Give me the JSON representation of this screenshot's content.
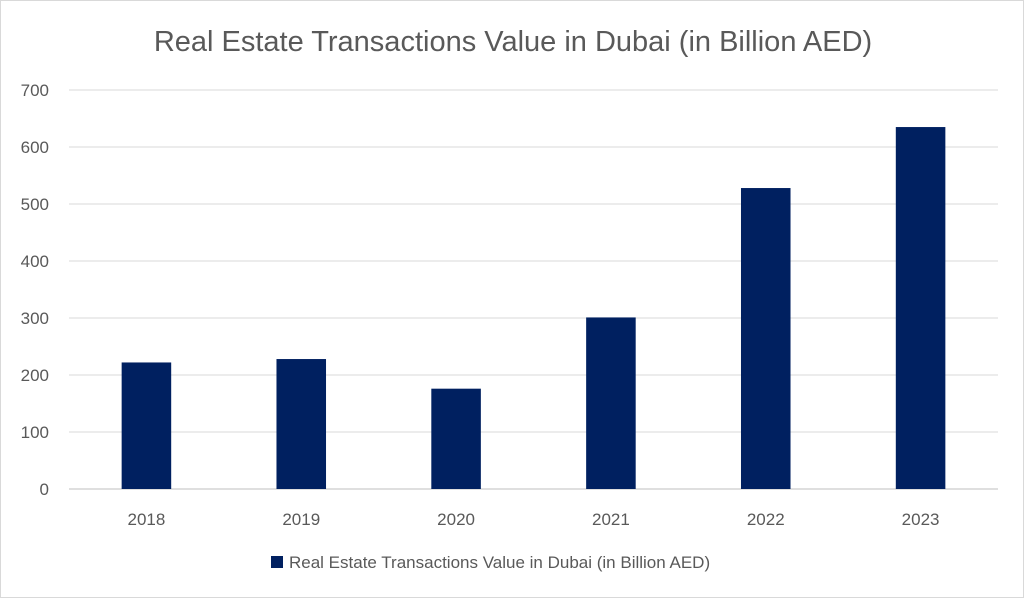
{
  "chart_data": {
    "type": "bar",
    "title": "Real Estate Transactions Value in Dubai (in Billion AED)",
    "categories": [
      "2018",
      "2019",
      "2020",
      "2021",
      "2022",
      "2023"
    ],
    "series": [
      {
        "name": "Real Estate Transactions Value in Dubai (in Billion AED)",
        "values": [
          222,
          228,
          176,
          301,
          528,
          635
        ],
        "color": "#002060"
      }
    ],
    "xlabel": "",
    "ylabel": "",
    "ylim": [
      0,
      700
    ],
    "yticks": [
      "0",
      "100",
      "200",
      "300",
      "400",
      "500",
      "600",
      "700"
    ],
    "grid": true,
    "legend": "bottom"
  }
}
